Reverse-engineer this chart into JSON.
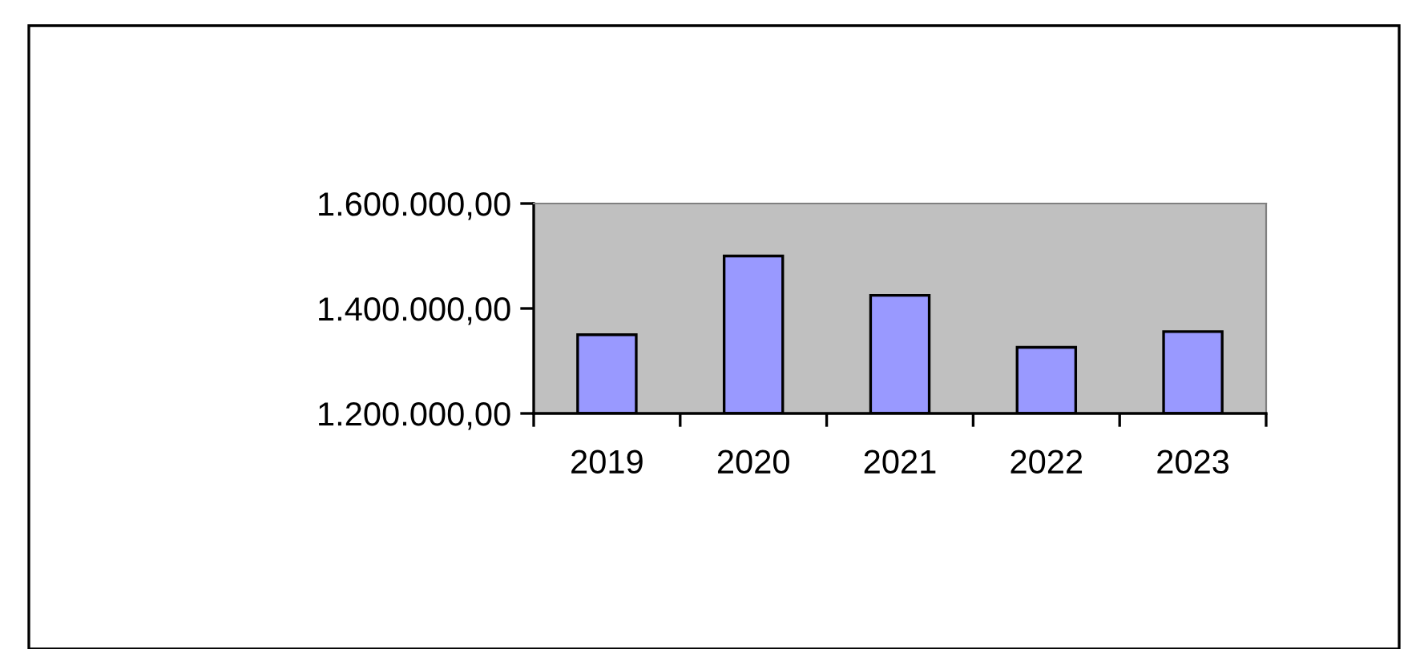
{
  "chart_data": {
    "type": "bar",
    "categories": [
      "2019",
      "2020",
      "2021",
      "2022",
      "2023"
    ],
    "values": [
      1350000,
      1500000,
      1425000,
      1326000,
      1356000
    ],
    "color": "#9999ff",
    "ylim": [
      1200000,
      1600000
    ],
    "yticks": [
      {
        "value": 1200000,
        "label": "1.200.000,00"
      },
      {
        "value": 1400000,
        "label": "1.400.000,00"
      },
      {
        "value": 1600000,
        "label": "1.600.000,00"
      }
    ],
    "grid": false,
    "legend": false
  }
}
